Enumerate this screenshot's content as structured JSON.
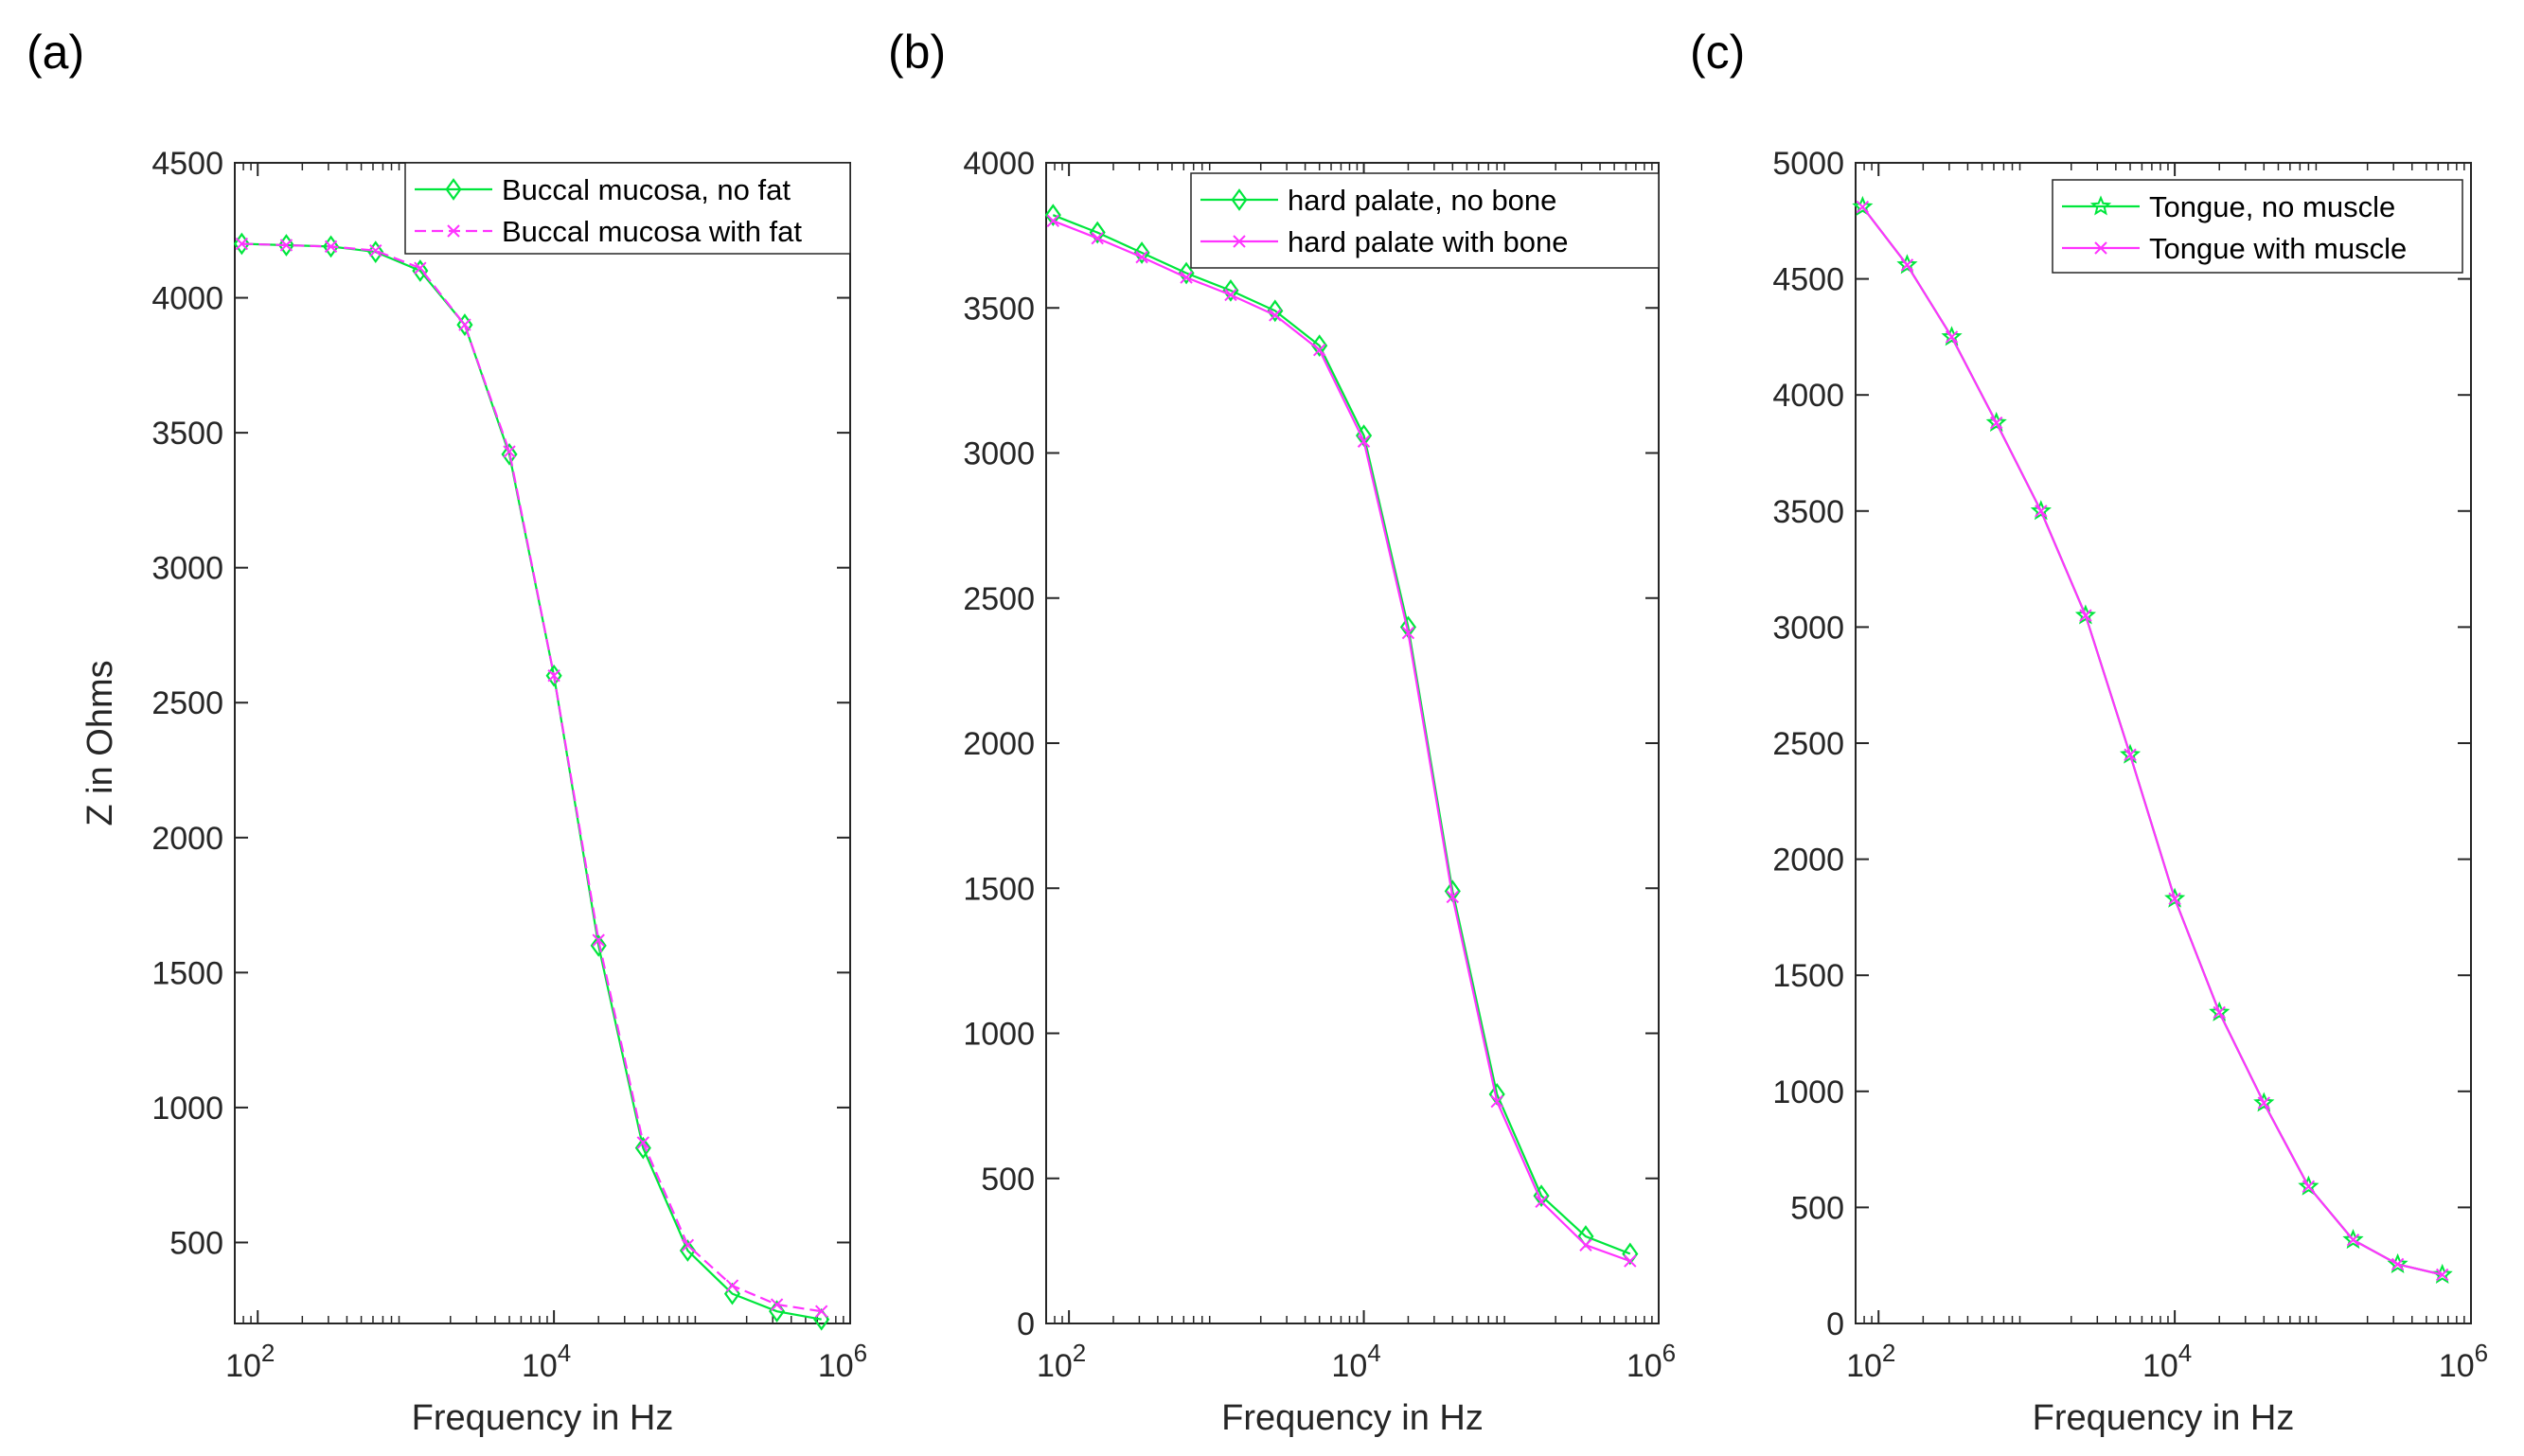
{
  "colors": {
    "series1": "#00e63c",
    "series2": "#ff33ff",
    "axis": "#262626"
  },
  "chart_data": [
    {
      "panel_label": "(a)",
      "type": "line",
      "xscale": "log",
      "xlabel": "Frequency in Hz",
      "ylabel": "Z in Ohms",
      "xlim": [
        70,
        1000000
      ],
      "ylim": [
        200,
        4500
      ],
      "yticks": [
        500,
        1000,
        1500,
        2000,
        2500,
        3000,
        3500,
        4000,
        4500
      ],
      "xticks": [
        {
          "value": 100,
          "base": "10",
          "exp": "2"
        },
        {
          "value": 10000,
          "base": "10",
          "exp": "4"
        },
        {
          "value": 1000000,
          "base": "10",
          "exp": "6"
        }
      ],
      "legend_position": "top-right",
      "x": [
        78,
        156,
        312,
        625,
        1250,
        2500,
        5000,
        10000,
        20000,
        40000,
        80000,
        160000,
        320000,
        640000
      ],
      "series": [
        {
          "name": "Buccal mucosa, no fat",
          "marker": "diamond",
          "dash": "solid",
          "values": [
            4200,
            4195,
            4190,
            4170,
            4100,
            3900,
            3420,
            2600,
            1600,
            850,
            470,
            310,
            245,
            215
          ]
        },
        {
          "name": "Buccal mucosa with fat",
          "marker": "x",
          "dash": "dashed",
          "values": [
            4200,
            4195,
            4190,
            4175,
            4110,
            3900,
            3430,
            2600,
            1620,
            870,
            490,
            340,
            270,
            245
          ]
        }
      ]
    },
    {
      "panel_label": "(b)",
      "type": "line",
      "xscale": "log",
      "xlabel": "Frequency in Hz",
      "ylabel": "",
      "xlim": [
        70,
        1000000
      ],
      "ylim": [
        0,
        4000
      ],
      "yticks": [
        0,
        500,
        1000,
        1500,
        2000,
        2500,
        3000,
        3500,
        4000
      ],
      "xticks": [
        {
          "value": 100,
          "base": "10",
          "exp": "2"
        },
        {
          "value": 10000,
          "base": "10",
          "exp": "4"
        },
        {
          "value": 1000000,
          "base": "10",
          "exp": "6"
        }
      ],
      "legend_position": "top-right",
      "x": [
        78,
        156,
        312,
        625,
        1250,
        2500,
        5000,
        10000,
        20000,
        40000,
        80000,
        160000,
        320000,
        640000
      ],
      "series": [
        {
          "name": "hard palate, no bone",
          "marker": "diamond",
          "dash": "solid",
          "values": [
            3820,
            3760,
            3690,
            3620,
            3560,
            3490,
            3370,
            3060,
            2400,
            1490,
            790,
            440,
            300,
            240
          ]
        },
        {
          "name": "hard palate with bone",
          "marker": "x",
          "dash": "solid",
          "values": [
            3800,
            3740,
            3675,
            3605,
            3545,
            3475,
            3355,
            3040,
            2380,
            1470,
            765,
            420,
            270,
            215
          ]
        }
      ]
    },
    {
      "panel_label": "(c)",
      "type": "line",
      "xscale": "log",
      "xlabel": "Frequency in Hz",
      "ylabel": "",
      "xlim": [
        70,
        1000000
      ],
      "ylim": [
        0,
        5000
      ],
      "yticks": [
        0,
        500,
        1000,
        1500,
        2000,
        2500,
        3000,
        3500,
        4000,
        4500,
        5000
      ],
      "xticks": [
        {
          "value": 100,
          "base": "10",
          "exp": "2"
        },
        {
          "value": 10000,
          "base": "10",
          "exp": "4"
        },
        {
          "value": 1000000,
          "base": "10",
          "exp": "6"
        }
      ],
      "legend_position": "top-right",
      "x": [
        78,
        156,
        312,
        625,
        1250,
        2500,
        5000,
        10000,
        20000,
        40000,
        80000,
        160000,
        320000,
        640000
      ],
      "series": [
        {
          "name": "Tongue, no muscle",
          "marker": "star",
          "dash": "solid",
          "values": [
            4810,
            4560,
            4250,
            3880,
            3500,
            3050,
            2450,
            1830,
            1340,
            950,
            590,
            360,
            255,
            210
          ]
        },
        {
          "name": "Tongue with muscle",
          "marker": "x",
          "dash": "solid",
          "values": [
            4810,
            4560,
            4250,
            3880,
            3500,
            3050,
            2450,
            1830,
            1340,
            950,
            590,
            360,
            255,
            210
          ]
        }
      ]
    }
  ]
}
